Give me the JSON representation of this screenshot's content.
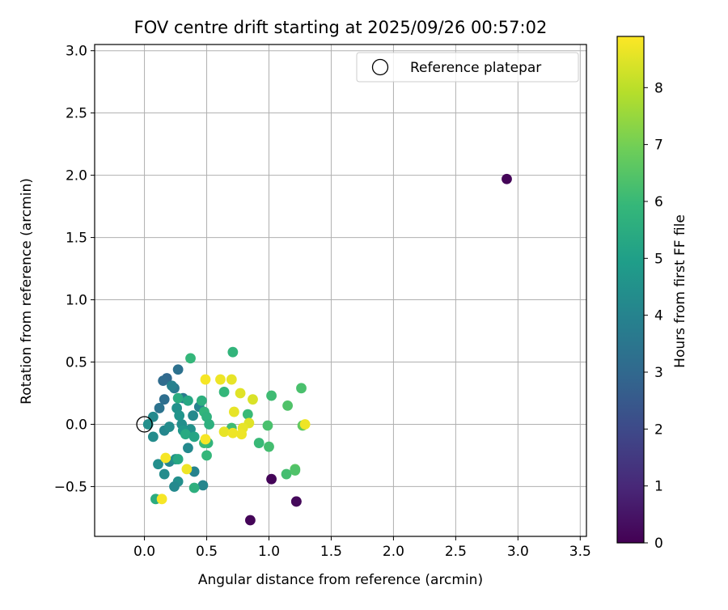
{
  "chart_data": {
    "type": "scatter",
    "title": "FOV centre drift starting at 2025/09/26 00:57:02",
    "xlabel": "Angular distance from reference (arcmin)",
    "ylabel": "Rotation from reference (arcmin)",
    "xlim": [
      -0.4,
      3.55
    ],
    "ylim": [
      -0.9,
      3.05
    ],
    "grid": true,
    "x_ticks": [
      0.0,
      0.5,
      1.0,
      1.5,
      2.0,
      2.5,
      3.0,
      3.5
    ],
    "x_tick_labels": [
      "0.0",
      "0.5",
      "1.0",
      "1.5",
      "2.0",
      "2.5",
      "3.0",
      "3.5"
    ],
    "y_ticks": [
      -0.5,
      0.0,
      0.5,
      1.0,
      1.5,
      2.0,
      2.5,
      3.0
    ],
    "y_tick_labels": [
      "−0.5",
      "0.0",
      "0.5",
      "1.0",
      "1.5",
      "2.0",
      "2.5",
      "3.0"
    ],
    "legend": {
      "label": "Reference platepar",
      "position": "top-right"
    },
    "reference_point": {
      "x": 0.0,
      "y": 0.0
    },
    "colorbar": {
      "label": "Hours from first FF file",
      "range": [
        0,
        8.9
      ],
      "ticks": [
        0,
        1,
        2,
        3,
        4,
        5,
        6,
        7,
        8
      ],
      "tick_labels": [
        "0",
        "1",
        "2",
        "3",
        "4",
        "5",
        "6",
        "7",
        "8"
      ],
      "colormap": "viridis",
      "colormap_stops": [
        "#440154",
        "#482878",
        "#3e4989",
        "#31688e",
        "#26828e",
        "#1f9e89",
        "#35b779",
        "#6ece58",
        "#b5de2b",
        "#fde725"
      ]
    },
    "points": [
      {
        "x": 2.91,
        "y": 1.97,
        "h": 0.1
      },
      {
        "x": 1.02,
        "y": -0.44,
        "h": 0.1
      },
      {
        "x": 0.85,
        "y": -0.77,
        "h": 0.1
      },
      {
        "x": 1.22,
        "y": -0.62,
        "h": 0.1
      },
      {
        "x": 1.22,
        "y": -0.62,
        "h": 0.2
      },
      {
        "x": 0.18,
        "y": 0.37,
        "h": 3.0
      },
      {
        "x": 0.15,
        "y": 0.35,
        "h": 3.1
      },
      {
        "x": 0.27,
        "y": 0.44,
        "h": 3.3
      },
      {
        "x": 0.16,
        "y": 0.2,
        "h": 3.2
      },
      {
        "x": 0.12,
        "y": 0.13,
        "h": 3.4
      },
      {
        "x": 0.24,
        "y": 0.29,
        "h": 3.6
      },
      {
        "x": 0.31,
        "y": 0.21,
        "h": 3.7
      },
      {
        "x": 0.22,
        "y": 0.31,
        "h": 3.9
      },
      {
        "x": 0.07,
        "y": 0.06,
        "h": 4.2
      },
      {
        "x": 0.03,
        "y": 0.0,
        "h": 4.4
      },
      {
        "x": 0.07,
        "y": -0.1,
        "h": 4.3
      },
      {
        "x": 0.16,
        "y": -0.05,
        "h": 4.1
      },
      {
        "x": 0.2,
        "y": -0.02,
        "h": 4.3
      },
      {
        "x": 0.26,
        "y": 0.13,
        "h": 4.5
      },
      {
        "x": 0.3,
        "y": 0.0,
        "h": 4.4
      },
      {
        "x": 0.37,
        "y": -0.04,
        "h": 4.5
      },
      {
        "x": 0.39,
        "y": 0.07,
        "h": 4.2
      },
      {
        "x": 0.44,
        "y": 0.14,
        "h": 4.0
      },
      {
        "x": 0.28,
        "y": 0.07,
        "h": 4.6
      },
      {
        "x": 0.31,
        "y": -0.05,
        "h": 4.7
      },
      {
        "x": 0.35,
        "y": -0.19,
        "h": 4.2
      },
      {
        "x": 0.11,
        "y": -0.32,
        "h": 4.4
      },
      {
        "x": 0.2,
        "y": -0.3,
        "h": 4.1
      },
      {
        "x": 0.25,
        "y": -0.28,
        "h": 4.5
      },
      {
        "x": 0.16,
        "y": -0.4,
        "h": 4.3
      },
      {
        "x": 0.27,
        "y": -0.46,
        "h": 4.4
      },
      {
        "x": 0.24,
        "y": -0.5,
        "h": 4.2
      },
      {
        "x": 0.4,
        "y": -0.38,
        "h": 4.0
      },
      {
        "x": 0.47,
        "y": -0.49,
        "h": 4.1
      },
      {
        "x": 0.09,
        "y": -0.6,
        "h": 5.5
      },
      {
        "x": 0.4,
        "y": -0.51,
        "h": 5.6
      },
      {
        "x": 0.27,
        "y": -0.28,
        "h": 5.3
      },
      {
        "x": 0.33,
        "y": -0.08,
        "h": 5.4
      },
      {
        "x": 0.4,
        "y": -0.1,
        "h": 5.2
      },
      {
        "x": 0.27,
        "y": 0.21,
        "h": 5.5
      },
      {
        "x": 0.35,
        "y": 0.19,
        "h": 5.3
      },
      {
        "x": 0.46,
        "y": 0.19,
        "h": 5.6
      },
      {
        "x": 0.48,
        "y": 0.1,
        "h": 5.8
      },
      {
        "x": 0.5,
        "y": 0.06,
        "h": 5.7
      },
      {
        "x": 0.52,
        "y": 0.0,
        "h": 5.6
      },
      {
        "x": 0.51,
        "y": -0.15,
        "h": 5.8
      },
      {
        "x": 0.48,
        "y": -0.15,
        "h": 6.0
      },
      {
        "x": 0.5,
        "y": -0.25,
        "h": 5.9
      },
      {
        "x": 0.37,
        "y": 0.53,
        "h": 5.9
      },
      {
        "x": 0.71,
        "y": 0.58,
        "h": 5.8
      },
      {
        "x": 0.64,
        "y": 0.26,
        "h": 5.9
      },
      {
        "x": 0.7,
        "y": -0.03,
        "h": 6.1
      },
      {
        "x": 0.83,
        "y": 0.08,
        "h": 6.0
      },
      {
        "x": 0.92,
        "y": -0.15,
        "h": 6.0
      },
      {
        "x": 0.99,
        "y": -0.01,
        "h": 6.3
      },
      {
        "x": 1.0,
        "y": -0.18,
        "h": 6.2
      },
      {
        "x": 1.02,
        "y": 0.23,
        "h": 6.1
      },
      {
        "x": 1.15,
        "y": 0.15,
        "h": 6.4
      },
      {
        "x": 1.14,
        "y": -0.4,
        "h": 6.2
      },
      {
        "x": 1.21,
        "y": -0.36,
        "h": 6.6
      },
      {
        "x": 1.21,
        "y": -0.37,
        "h": 6.4
      },
      {
        "x": 1.26,
        "y": 0.29,
        "h": 6.3
      },
      {
        "x": 1.27,
        "y": -0.01,
        "h": 6.7
      },
      {
        "x": 0.49,
        "y": 0.36,
        "h": 8.8
      },
      {
        "x": 0.61,
        "y": 0.36,
        "h": 8.7
      },
      {
        "x": 0.7,
        "y": 0.36,
        "h": 8.6
      },
      {
        "x": 0.77,
        "y": 0.25,
        "h": 8.5
      },
      {
        "x": 0.87,
        "y": 0.2,
        "h": 8.4
      },
      {
        "x": 0.72,
        "y": 0.1,
        "h": 8.6
      },
      {
        "x": 0.84,
        "y": 0.01,
        "h": 8.5
      },
      {
        "x": 0.79,
        "y": -0.03,
        "h": 8.6
      },
      {
        "x": 0.78,
        "y": -0.08,
        "h": 8.7
      },
      {
        "x": 0.64,
        "y": -0.06,
        "h": 8.6
      },
      {
        "x": 0.71,
        "y": -0.07,
        "h": 8.7
      },
      {
        "x": 0.49,
        "y": -0.12,
        "h": 8.8
      },
      {
        "x": 1.29,
        "y": 0.0,
        "h": 8.7
      },
      {
        "x": 0.17,
        "y": -0.27,
        "h": 8.8
      },
      {
        "x": 0.34,
        "y": -0.36,
        "h": 8.7
      },
      {
        "x": 0.14,
        "y": -0.6,
        "h": 8.8
      }
    ]
  }
}
